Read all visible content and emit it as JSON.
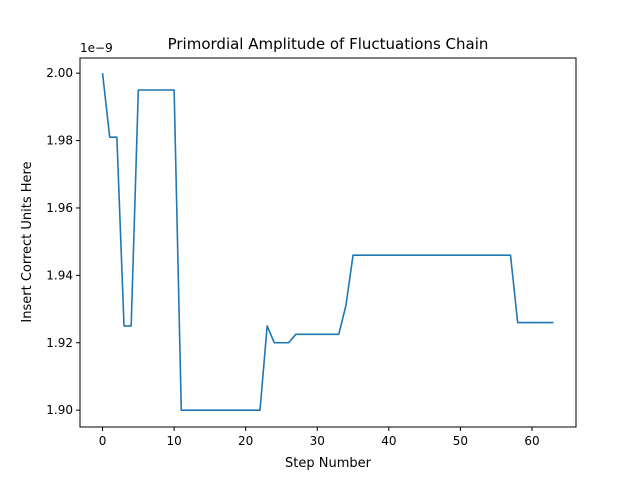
{
  "chart_data": {
    "type": "line",
    "title": "Primordial Amplitude of Fluctuations Chain",
    "xlabel": "Step Number",
    "ylabel": "Insert Correct Units Here",
    "y_offset_label": "1e−9",
    "xlim": [
      -3.15,
      66.15
    ],
    "ylim": [
      1.895,
      2.0045
    ],
    "x_ticks": [
      0,
      10,
      20,
      30,
      40,
      50,
      60
    ],
    "x_tick_labels": [
      "0",
      "10",
      "20",
      "30",
      "40",
      "50",
      "60"
    ],
    "y_ticks": [
      1.9,
      1.92,
      1.94,
      1.96,
      1.98,
      2.0
    ],
    "y_tick_labels": [
      "1.90",
      "1.92",
      "1.94",
      "1.96",
      "1.98",
      "2.00"
    ],
    "grid": false,
    "series": [
      {
        "color": "#1f77b4",
        "x": [
          0,
          1,
          2,
          3,
          4,
          5,
          6,
          7,
          8,
          9,
          10,
          11,
          12,
          13,
          14,
          15,
          16,
          17,
          18,
          19,
          20,
          21,
          22,
          23,
          24,
          25,
          26,
          27,
          28,
          29,
          30,
          31,
          32,
          33,
          34,
          35,
          36,
          37,
          38,
          39,
          40,
          41,
          42,
          43,
          44,
          45,
          46,
          47,
          48,
          49,
          50,
          51,
          52,
          53,
          54,
          55,
          56,
          57,
          58,
          59,
          60,
          61,
          62,
          63
        ],
        "values": [
          2.0,
          1.981,
          1.981,
          1.925,
          1.925,
          1.995,
          1.995,
          1.995,
          1.995,
          1.995,
          1.995,
          1.9,
          1.9,
          1.9,
          1.9,
          1.9,
          1.9,
          1.9,
          1.9,
          1.9,
          1.9,
          1.9,
          1.9,
          1.925,
          1.92,
          1.92,
          1.92,
          1.9225,
          1.9225,
          1.9225,
          1.9225,
          1.9225,
          1.9225,
          1.9225,
          1.931,
          1.946,
          1.946,
          1.946,
          1.946,
          1.946,
          1.946,
          1.946,
          1.946,
          1.946,
          1.946,
          1.946,
          1.946,
          1.946,
          1.946,
          1.946,
          1.946,
          1.946,
          1.946,
          1.946,
          1.946,
          1.946,
          1.946,
          1.946,
          1.926,
          1.926,
          1.926,
          1.926,
          1.926,
          1.926
        ]
      }
    ]
  }
}
